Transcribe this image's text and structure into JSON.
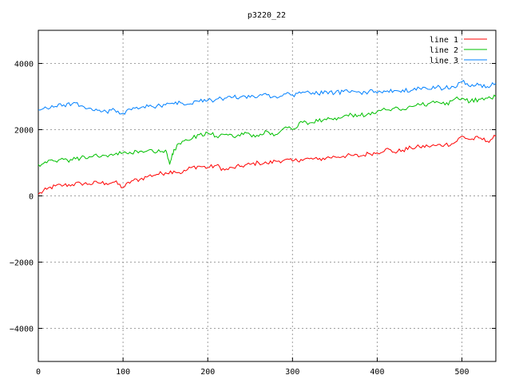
{
  "chart_data": {
    "type": "line",
    "title": "p3220_22",
    "xlabel": "",
    "ylabel": "",
    "xlim": [
      0,
      540
    ],
    "ylim": [
      -5000,
      5000
    ],
    "xticks": [
      "0",
      "100",
      "200",
      "300",
      "400",
      "500"
    ],
    "yticks": [
      "4000",
      "2000",
      "0",
      "−2000",
      "−4000"
    ],
    "grid": true,
    "legend_position": "top-right",
    "series": [
      {
        "name": "line 1",
        "color": "#ff0000",
        "points": [
          [
            0,
            50
          ],
          [
            10,
            200
          ],
          [
            20,
            300
          ],
          [
            30,
            320
          ],
          [
            40,
            340
          ],
          [
            50,
            380
          ],
          [
            60,
            360
          ],
          [
            70,
            400
          ],
          [
            80,
            380
          ],
          [
            90,
            420
          ],
          [
            100,
            250
          ],
          [
            110,
            450
          ],
          [
            120,
            500
          ],
          [
            130,
            600
          ],
          [
            140,
            650
          ],
          [
            150,
            700
          ],
          [
            160,
            750
          ],
          [
            170,
            700
          ],
          [
            180,
            850
          ],
          [
            190,
            900
          ],
          [
            200,
            850
          ],
          [
            210,
            920
          ],
          [
            220,
            780
          ],
          [
            230,
            850
          ],
          [
            240,
            900
          ],
          [
            250,
            950
          ],
          [
            260,
            1000
          ],
          [
            270,
            980
          ],
          [
            280,
            1050
          ],
          [
            290,
            1080
          ],
          [
            300,
            1050
          ],
          [
            310,
            1100
          ],
          [
            320,
            1120
          ],
          [
            330,
            1100
          ],
          [
            340,
            1150
          ],
          [
            350,
            1180
          ],
          [
            360,
            1200
          ],
          [
            370,
            1220
          ],
          [
            380,
            1200
          ],
          [
            390,
            1280
          ],
          [
            400,
            1300
          ],
          [
            410,
            1420
          ],
          [
            420,
            1320
          ],
          [
            430,
            1380
          ],
          [
            440,
            1450
          ],
          [
            450,
            1480
          ],
          [
            460,
            1500
          ],
          [
            470,
            1520
          ],
          [
            480,
            1550
          ],
          [
            490,
            1580
          ],
          [
            500,
            1800
          ],
          [
            510,
            1700
          ],
          [
            520,
            1750
          ],
          [
            530,
            1650
          ],
          [
            540,
            1800
          ]
        ]
      },
      {
        "name": "line 2",
        "color": "#00c000",
        "points": [
          [
            0,
            950
          ],
          [
            10,
            1000
          ],
          [
            20,
            1050
          ],
          [
            30,
            1100
          ],
          [
            40,
            1080
          ],
          [
            50,
            1150
          ],
          [
            60,
            1180
          ],
          [
            70,
            1200
          ],
          [
            80,
            1220
          ],
          [
            90,
            1250
          ],
          [
            100,
            1300
          ],
          [
            110,
            1280
          ],
          [
            120,
            1350
          ],
          [
            130,
            1380
          ],
          [
            140,
            1320
          ],
          [
            150,
            1380
          ],
          [
            155,
            950
          ],
          [
            160,
            1400
          ],
          [
            170,
            1650
          ],
          [
            180,
            1700
          ],
          [
            190,
            1850
          ],
          [
            200,
            1900
          ],
          [
            210,
            1800
          ],
          [
            220,
            1850
          ],
          [
            230,
            1780
          ],
          [
            240,
            1900
          ],
          [
            250,
            1850
          ],
          [
            260,
            1800
          ],
          [
            270,
            1950
          ],
          [
            280,
            1850
          ],
          [
            290,
            2050
          ],
          [
            300,
            2000
          ],
          [
            310,
            2250
          ],
          [
            320,
            2200
          ],
          [
            330,
            2250
          ],
          [
            340,
            2300
          ],
          [
            350,
            2350
          ],
          [
            360,
            2400
          ],
          [
            370,
            2450
          ],
          [
            380,
            2420
          ],
          [
            390,
            2500
          ],
          [
            400,
            2550
          ],
          [
            410,
            2600
          ],
          [
            420,
            2650
          ],
          [
            430,
            2620
          ],
          [
            440,
            2700
          ],
          [
            450,
            2750
          ],
          [
            460,
            2780
          ],
          [
            470,
            2850
          ],
          [
            480,
            2750
          ],
          [
            490,
            2900
          ],
          [
            500,
            2950
          ],
          [
            510,
            2850
          ],
          [
            520,
            2920
          ],
          [
            530,
            2950
          ],
          [
            540,
            3000
          ]
        ]
      },
      {
        "name": "line 3",
        "color": "#0080ff",
        "points": [
          [
            0,
            2600
          ],
          [
            10,
            2650
          ],
          [
            20,
            2700
          ],
          [
            30,
            2750
          ],
          [
            40,
            2780
          ],
          [
            50,
            2720
          ],
          [
            60,
            2650
          ],
          [
            70,
            2580
          ],
          [
            80,
            2550
          ],
          [
            90,
            2600
          ],
          [
            100,
            2500
          ],
          [
            110,
            2600
          ],
          [
            120,
            2650
          ],
          [
            130,
            2700
          ],
          [
            140,
            2720
          ],
          [
            150,
            2750
          ],
          [
            160,
            2780
          ],
          [
            170,
            2800
          ],
          [
            180,
            2780
          ],
          [
            190,
            2850
          ],
          [
            200,
            2880
          ],
          [
            210,
            2920
          ],
          [
            220,
            2950
          ],
          [
            230,
            2980
          ],
          [
            240,
            3000
          ],
          [
            250,
            2980
          ],
          [
            260,
            3020
          ],
          [
            270,
            3050
          ],
          [
            280,
            3000
          ],
          [
            290,
            3080
          ],
          [
            300,
            3050
          ],
          [
            310,
            3100
          ],
          [
            320,
            3120
          ],
          [
            330,
            3080
          ],
          [
            340,
            3150
          ],
          [
            350,
            3100
          ],
          [
            360,
            3150
          ],
          [
            370,
            3180
          ],
          [
            380,
            3120
          ],
          [
            390,
            3150
          ],
          [
            400,
            3100
          ],
          [
            410,
            3150
          ],
          [
            420,
            3180
          ],
          [
            430,
            3200
          ],
          [
            440,
            3180
          ],
          [
            450,
            3250
          ],
          [
            460,
            3220
          ],
          [
            470,
            3280
          ],
          [
            480,
            3250
          ],
          [
            490,
            3300
          ],
          [
            500,
            3450
          ],
          [
            510,
            3300
          ],
          [
            520,
            3350
          ],
          [
            530,
            3300
          ],
          [
            540,
            3400
          ]
        ]
      }
    ]
  }
}
